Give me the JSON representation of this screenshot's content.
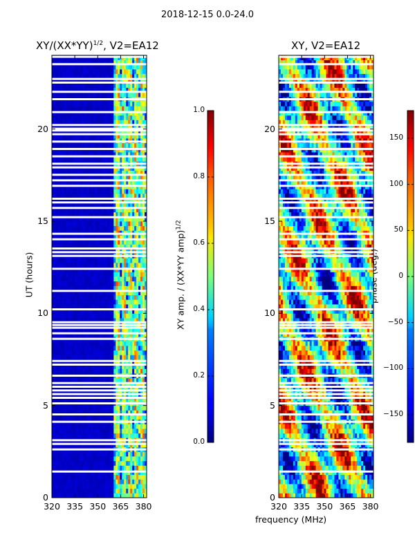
{
  "suptitle": "2018-12-15 0.0-24.0",
  "chart_data": [
    {
      "type": "heatmap",
      "title": "XY/(XX*YY)",
      "title_exponent": "1/2",
      "title_suffix": ", V2=EA12",
      "xlabel": "",
      "ylabel": "UT (hours)",
      "xlim": [
        320,
        382
      ],
      "ylim": [
        0,
        24
      ],
      "xticks": [
        "320",
        "335",
        "350",
        "365",
        "380"
      ],
      "xtick_values": [
        320,
        335,
        350,
        365,
        380
      ],
      "yticks": [
        "0",
        "5",
        "10",
        "15",
        "20"
      ],
      "ytick_values": [
        0,
        5,
        10,
        15,
        20
      ],
      "colormap": "jet",
      "colorbar": {
        "label": "XY amp. / (XX*YY amp)",
        "label_exponent": "1/2",
        "range": [
          0.0,
          1.0
        ],
        "ticks": [
          "0.0",
          "0.2",
          "0.4",
          "0.6",
          "0.8",
          "1.0"
        ],
        "tick_values": [
          0.0,
          0.2,
          0.4,
          0.6,
          0.8,
          1.0
        ]
      },
      "low_band_value": 0.05,
      "high_band_start_mhz": 360,
      "high_band_value_range": [
        0.3,
        0.75
      ]
    },
    {
      "type": "heatmap",
      "title": "XY, V2=EA12",
      "xlabel": "frequency (MHz)",
      "ylabel": "",
      "xlim": [
        320,
        382
      ],
      "ylim": [
        0,
        24
      ],
      "xticks": [
        "320",
        "335",
        "350",
        "365",
        "380"
      ],
      "xtick_values": [
        320,
        335,
        350,
        365,
        380
      ],
      "yticks": [
        "0",
        "5",
        "10",
        "15",
        "20"
      ],
      "ytick_values": [
        0,
        5,
        10,
        15,
        20
      ],
      "colormap": "jet",
      "colorbar": {
        "label": "phase (deg.)",
        "range": [
          -180,
          180
        ],
        "ticks": [
          "−150",
          "−100",
          "−50",
          "0",
          "50",
          "100",
          "150"
        ],
        "tick_values": [
          -150,
          -100,
          -50,
          0,
          50,
          100,
          150
        ]
      }
    }
  ],
  "flagged_hours": [
    1.4,
    2.6,
    2.9,
    3.1,
    4.1,
    4.5,
    5.1,
    5.4,
    5.6,
    5.8,
    6.0,
    6.2,
    6.6,
    7.2,
    7.4,
    8.6,
    8.9,
    9.2,
    9.35,
    9.5,
    10.2,
    11.2,
    12.4,
    13.1,
    13.3,
    13.5,
    14.0,
    14.3,
    15.2,
    15.7,
    16.0,
    16.2,
    16.9,
    17.2,
    17.5,
    17.9,
    18.1,
    18.5,
    18.9,
    19.3,
    19.7,
    19.9,
    20.0,
    20.2,
    20.9,
    21.6,
    22.0,
    22.5,
    22.7,
    23.5,
    23.9
  ]
}
